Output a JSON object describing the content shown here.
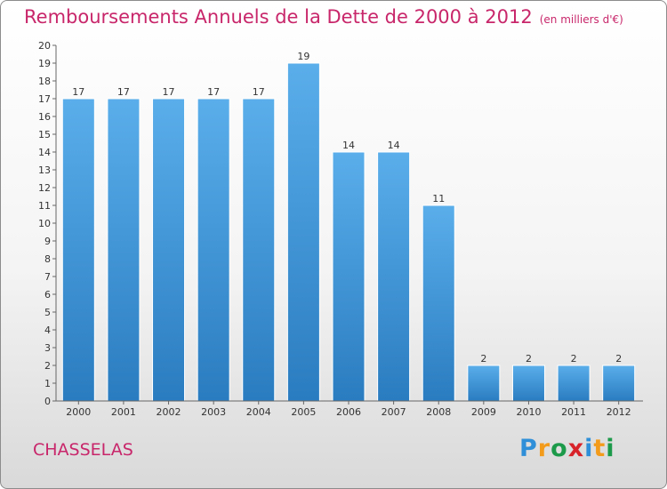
{
  "title": "Remboursements Annuels de la Dette de 2000 à 2012",
  "unit": "(en milliers d'€)",
  "commune": "CHASSELAS",
  "brand": {
    "letters": [
      "P",
      "r",
      "o",
      "x",
      "i",
      "t",
      "i"
    ],
    "colors": [
      "#2f8fd8",
      "#f39b1b",
      "#1c9a4a",
      "#d8232a",
      "#2f8fd8",
      "#f39b1b",
      "#1c9a4a"
    ]
  },
  "colors": {
    "bar_light": "#5aaeea",
    "bar_dark": "#2a7cc0",
    "title": "#c8266a"
  },
  "chart_data": {
    "type": "bar",
    "title": "Remboursements Annuels de la Dette de 2000 à 2012",
    "unit": "(en milliers d'€)",
    "categories": [
      "2000",
      "2001",
      "2002",
      "2003",
      "2004",
      "2005",
      "2006",
      "2007",
      "2008",
      "2009",
      "2010",
      "2011",
      "2012"
    ],
    "values": [
      17,
      17,
      17,
      17,
      17,
      19,
      14,
      14,
      11,
      2,
      2,
      2,
      2
    ],
    "ylim": [
      0,
      20
    ],
    "yticks": [
      "0",
      "1",
      "2",
      "3",
      "4",
      "5",
      "6",
      "7",
      "8",
      "9",
      "10",
      "11",
      "12",
      "13",
      "14",
      "15",
      "16",
      "17",
      "18",
      "19",
      "20"
    ],
    "grid": false,
    "data_labels": true
  }
}
